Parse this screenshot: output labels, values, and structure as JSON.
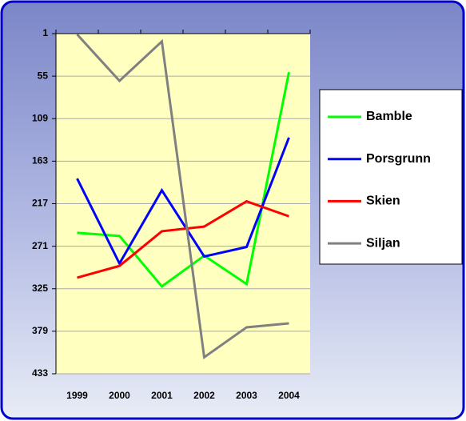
{
  "chart_data": {
    "type": "line",
    "categories": [
      "1999",
      "2000",
      "2001",
      "2002",
      "2003",
      "2004"
    ],
    "series": [
      {
        "name": "Bamble",
        "color": "#00ff00",
        "values": [
          254,
          258,
          322,
          283,
          319,
          50
        ]
      },
      {
        "name": "Porsgrunn",
        "color": "#0000ff",
        "values": [
          185,
          293,
          200,
          284,
          272,
          133
        ]
      },
      {
        "name": "Skien",
        "color": "#ff0000",
        "values": [
          311,
          296,
          252,
          246,
          214,
          233
        ]
      },
      {
        "name": "Siljan",
        "color": "#808080",
        "values": [
          2,
          61,
          11,
          412,
          374,
          369
        ]
      }
    ],
    "ylim": [
      1,
      433
    ],
    "yticks": [
      1,
      55,
      109,
      163,
      217,
      271,
      325,
      379,
      433
    ],
    "yreverse": true,
    "grid": true,
    "legend": "right"
  }
}
